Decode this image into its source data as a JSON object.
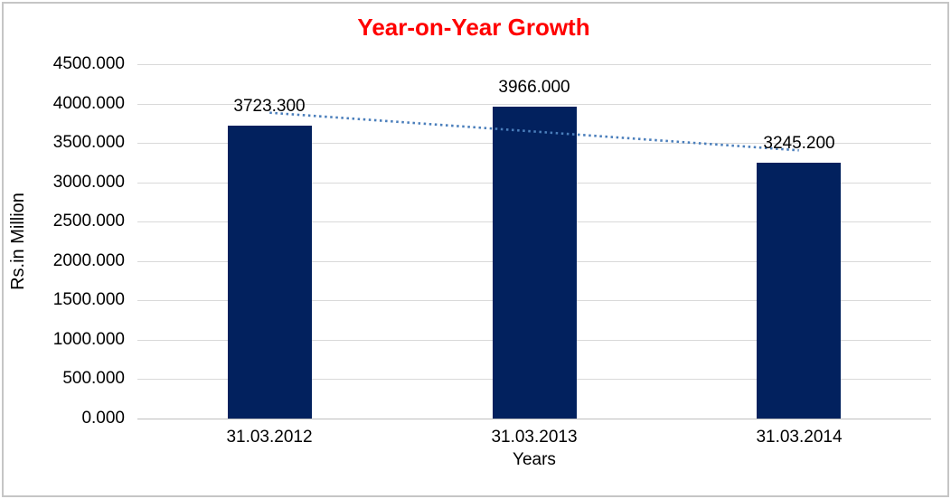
{
  "chart_data": {
    "type": "bar",
    "title": "Year-on-Year Growth",
    "title_color": "#ff0000",
    "xlabel": "Years",
    "ylabel": "Rs.in Million",
    "categories": [
      "31.03.2012",
      "31.03.2013",
      "31.03.2014"
    ],
    "series": [
      {
        "name": "Rs.in Million",
        "values": [
          3723.3,
          3966.0,
          3245.2
        ]
      }
    ],
    "data_labels": [
      "3723.300",
      "3966.000",
      "3245.200"
    ],
    "ylim": [
      0,
      4500
    ],
    "ytick_step": 500,
    "ytick_decimals": 3,
    "ytick_labels": [
      "0.000",
      "500.000",
      "1000.000",
      "1500.000",
      "2000.000",
      "2500.000",
      "3000.000",
      "3500.000",
      "4000.000",
      "4500.000"
    ],
    "grid": true,
    "legend": "none",
    "bar_color": "#02215e",
    "gridline_color": "#d9d9d9",
    "axis_line_color": "#bfbfbf",
    "frame_border_color": "#c6c6c6",
    "trendline": {
      "type": "linear",
      "style": "dotted",
      "color": "#4a7ebb",
      "values": [
        3883.9,
        3644.8,
        3405.8
      ]
    }
  }
}
